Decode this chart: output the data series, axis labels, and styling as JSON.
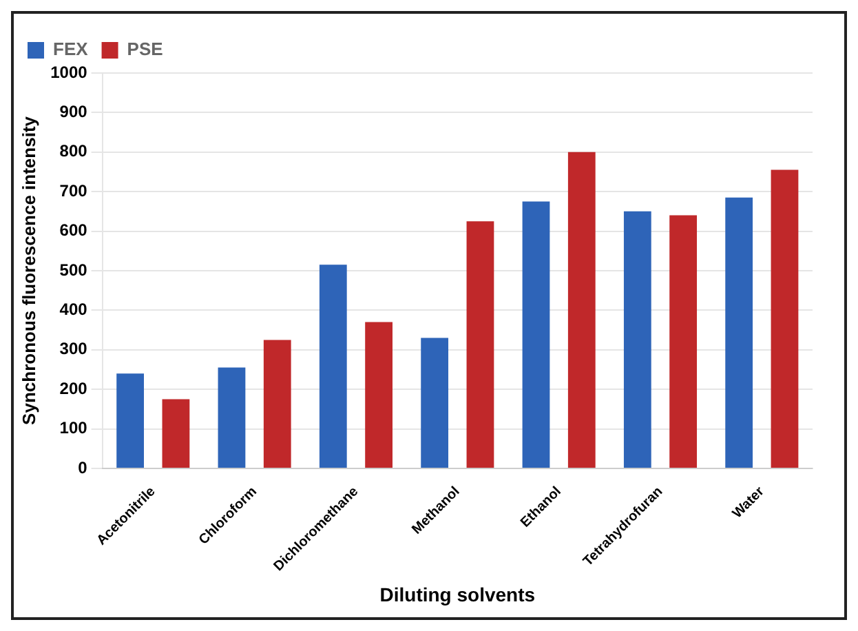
{
  "chart_data": {
    "type": "bar",
    "categories": [
      "Acetonitrile",
      "Chloroform",
      "Dichloromethane",
      "Methanol",
      "Ethanol",
      "Tetrahydrofuran",
      "Water"
    ],
    "series": [
      {
        "name": "FEX",
        "color": "#2e64b8",
        "values": [
          240,
          255,
          515,
          330,
          675,
          650,
          685
        ]
      },
      {
        "name": "PSE",
        "color": "#c0282a",
        "values": [
          175,
          325,
          370,
          625,
          800,
          640,
          755
        ]
      }
    ],
    "xlabel": "Diluting solvents",
    "ylabel": "Synchronous fluorescence intensity",
    "ylim": [
      0,
      1000
    ],
    "yticks": [
      0,
      100,
      200,
      300,
      400,
      500,
      600,
      700,
      800,
      900,
      1000
    ],
    "grid": "y",
    "legend": "top left"
  }
}
